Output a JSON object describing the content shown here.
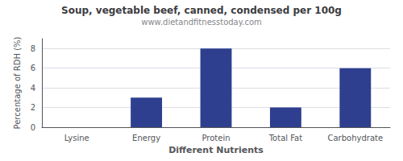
{
  "chart_data": {
    "type": "bar",
    "title": "Soup, vegetable beef, canned, condensed per 100g",
    "subtitle": "www.dietandfitnesstoday.com",
    "xlabel": "Different Nutrients",
    "ylabel": "Percentage of RDH (%)",
    "categories": [
      "Lysine",
      "Energy",
      "Protein",
      "Total Fat",
      "Carbohydrate"
    ],
    "values": [
      0,
      3,
      8,
      2,
      6
    ],
    "color": "#2e3f8f",
    "ylim": [
      0,
      9
    ],
    "yticks": [
      0,
      2,
      4,
      6,
      8
    ],
    "grid": true
  }
}
